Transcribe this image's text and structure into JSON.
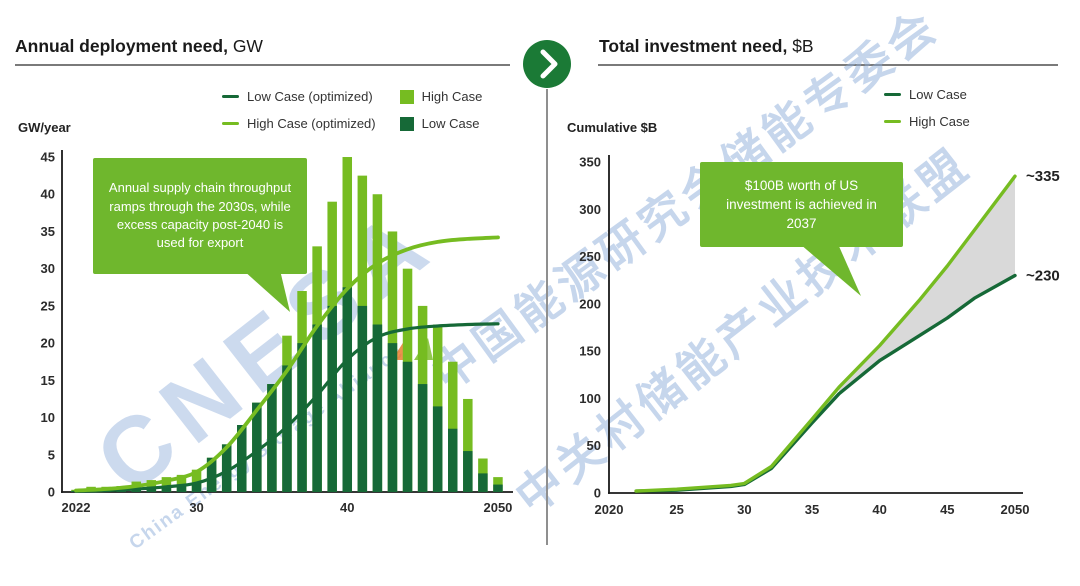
{
  "colors": {
    "light_green": "#76BC21",
    "dark_green": "#166937",
    "callout_green": "#6FB72D",
    "band_gray": "#D9D9D9",
    "axis_black": "#1a1a1a",
    "rule_gray": "#7a7a7a",
    "divider_gray": "#8f8f8f",
    "circle_green": "#1B7A36",
    "watermark_blue": "#8FAEDB"
  },
  "left_panel": {
    "title": "Annual deployment need,",
    "title_unit": " GW",
    "y_axis_label": "GW/year",
    "legend": [
      {
        "label": "Low Case (optimized)",
        "swatch": "line",
        "color_key": "dark_green"
      },
      {
        "label": "High Case (optimized)",
        "swatch": "line",
        "color_key": "light_green"
      },
      {
        "label": "High Case",
        "swatch": "square",
        "color_key": "light_green"
      },
      {
        "label": "Low Case",
        "swatch": "square",
        "color_key": "dark_green"
      }
    ],
    "callout_text": "Annual supply chain throughput ramps through the 2030s, while excess capacity post-2040 is used for export"
  },
  "right_panel": {
    "title": "Total investment need,",
    "title_unit": " $B",
    "y_axis_label": "Cumulative $B",
    "legend": [
      {
        "label": "Low Case",
        "swatch": "line",
        "color_key": "dark_green"
      },
      {
        "label": "High Case",
        "swatch": "line",
        "color_key": "light_green"
      }
    ],
    "callout_text": "$100B worth of US investment is achieved in 2037"
  },
  "watermark": {
    "line1": "中国能源研究会储能专委会",
    "line2": "中关村储能产业技术联盟",
    "logo": "CNESA",
    "logo_subtitle": "China Energy Storage Alliance"
  },
  "chart_data": [
    {
      "type": "bar",
      "title": "Annual deployment need, GW",
      "xlabel": "",
      "ylabel": "GW/year",
      "ylim": [
        0,
        45
      ],
      "yticks": [
        0,
        5,
        10,
        15,
        20,
        25,
        30,
        35,
        40,
        45
      ],
      "xticks": [
        {
          "year": 2022,
          "label": "2022"
        },
        {
          "year": 2030,
          "label": "30"
        },
        {
          "year": 2040,
          "label": "40"
        },
        {
          "year": 2050,
          "label": "2050"
        }
      ],
      "grid": false,
      "legend_position": "top",
      "categories": [
        2022,
        2023,
        2024,
        2025,
        2026,
        2027,
        2028,
        2029,
        2030,
        2031,
        2032,
        2033,
        2034,
        2035,
        2036,
        2037,
        2038,
        2039,
        2040,
        2041,
        2042,
        2043,
        2044,
        2045,
        2046,
        2047,
        2048,
        2049,
        2050
      ],
      "series": [
        {
          "name": "High Case",
          "kind": "bar",
          "color_key": "light_green",
          "values": [
            0.3,
            0.7,
            0.7,
            0.8,
            1.4,
            1.6,
            2.0,
            2.3,
            3.0,
            4.6,
            6.4,
            9.0,
            12.0,
            14.5,
            21,
            27,
            33,
            39,
            45,
            42.5,
            40,
            35,
            30,
            25,
            22.5,
            17.5,
            12.5,
            4.5,
            2.0
          ]
        },
        {
          "name": "Low Case",
          "kind": "bar",
          "color_key": "dark_green",
          "values": [
            0.15,
            0.3,
            0.3,
            0.4,
            0.5,
            0.6,
            0.8,
            1.0,
            1.2,
            4.6,
            6.4,
            9.0,
            12.0,
            14.5,
            17,
            20,
            22.5,
            25,
            27.5,
            25,
            22.5,
            20,
            17.5,
            14.5,
            11.5,
            8.5,
            5.5,
            2.5,
            1.0
          ]
        },
        {
          "name": "High Case (optimized)",
          "kind": "line",
          "color_key": "light_green",
          "points": [
            [
              2022,
              0.2
            ],
            [
              2024,
              0.4
            ],
            [
              2026,
              0.8
            ],
            [
              2028,
              1.5
            ],
            [
              2030,
              2.7
            ],
            [
              2032,
              6
            ],
            [
              2034,
              11
            ],
            [
              2036,
              16.3
            ],
            [
              2038,
              22.3
            ],
            [
              2040,
              27.3
            ],
            [
              2042,
              30.7
            ],
            [
              2044,
              32.6
            ],
            [
              2046,
              33.6
            ],
            [
              2048,
              34
            ],
            [
              2050,
              34.2
            ]
          ]
        },
        {
          "name": "Low Case (optimized)",
          "kind": "line",
          "color_key": "dark_green",
          "points": [
            [
              2022,
              0.1
            ],
            [
              2024,
              0.2
            ],
            [
              2026,
              0.4
            ],
            [
              2028,
              0.7
            ],
            [
              2030,
              1.2
            ],
            [
              2032,
              2.8
            ],
            [
              2034,
              5.5
            ],
            [
              2036,
              8.8
            ],
            [
              2038,
              13
            ],
            [
              2040,
              17.8
            ],
            [
              2042,
              20.8
            ],
            [
              2044,
              21.9
            ],
            [
              2046,
              22.3
            ],
            [
              2048,
              22.5
            ],
            [
              2050,
              22.6
            ]
          ]
        }
      ]
    },
    {
      "type": "line",
      "title": "Total investment need, $B",
      "xlabel": "",
      "ylabel": "Cumulative $B",
      "ylim": [
        0,
        350
      ],
      "yticks": [
        0,
        50,
        100,
        150,
        200,
        250,
        300,
        350
      ],
      "xticks": [
        {
          "year": 2020,
          "label": "2020"
        },
        {
          "year": 2025,
          "label": "25"
        },
        {
          "year": 2030,
          "label": "30"
        },
        {
          "year": 2035,
          "label": "35"
        },
        {
          "year": 2040,
          "label": "40"
        },
        {
          "year": 2045,
          "label": "45"
        },
        {
          "year": 2050,
          "label": "2050"
        }
      ],
      "grid": false,
      "legend_position": "top-right",
      "series": [
        {
          "name": "High Case",
          "kind": "line",
          "color_key": "light_green",
          "end_label": "~335",
          "points": [
            [
              2022,
              2
            ],
            [
              2025,
              4
            ],
            [
              2029,
              8
            ],
            [
              2030,
              10
            ],
            [
              2032,
              28
            ],
            [
              2035,
              78
            ],
            [
              2037,
              112
            ],
            [
              2040,
              156
            ],
            [
              2043,
              205
            ],
            [
              2045,
              240
            ],
            [
              2047,
              278
            ],
            [
              2050,
              335
            ]
          ]
        },
        {
          "name": "Low Case",
          "kind": "line",
          "color_key": "dark_green",
          "end_label": "~230",
          "points": [
            [
              2022,
              2
            ],
            [
              2025,
              3
            ],
            [
              2029,
              7
            ],
            [
              2030,
              9
            ],
            [
              2032,
              26
            ],
            [
              2035,
              74
            ],
            [
              2037,
              105
            ],
            [
              2040,
              140
            ],
            [
              2043,
              167
            ],
            [
              2045,
              185
            ],
            [
              2047,
              206
            ],
            [
              2050,
              230
            ]
          ]
        }
      ],
      "band": {
        "between": [
          "High Case",
          "Low Case"
        ],
        "from_year": 2036,
        "color_key": "band_gray"
      }
    }
  ]
}
